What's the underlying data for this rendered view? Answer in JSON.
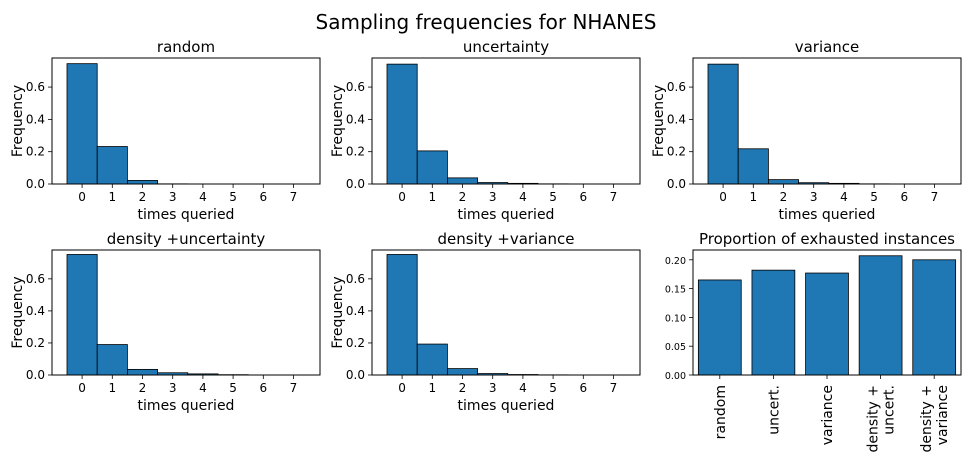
{
  "figure": {
    "title": "Sampling frequencies for NHANES",
    "bar_color": "#1f77b4"
  },
  "chart_data": [
    {
      "type": "bar",
      "title": "random",
      "xlabel": "times queried",
      "ylabel": "Frequency",
      "categories": [
        "0",
        "1",
        "2",
        "3",
        "4",
        "5",
        "6",
        "7"
      ],
      "values": [
        0.745,
        0.232,
        0.022,
        0.001,
        0,
        0,
        0,
        0
      ],
      "ylim": [
        0,
        0.78
      ],
      "yticks": [
        "0.0",
        "0.2",
        "0.4",
        "0.6"
      ]
    },
    {
      "type": "bar",
      "title": "uncertainty",
      "xlabel": "times queried",
      "ylabel": "Frequency",
      "categories": [
        "0",
        "1",
        "2",
        "3",
        "4",
        "5",
        "6",
        "7"
      ],
      "values": [
        0.742,
        0.205,
        0.038,
        0.009,
        0.004,
        0.001,
        0,
        0
      ],
      "ylim": [
        0,
        0.78
      ],
      "yticks": [
        "0.0",
        "0.2",
        "0.4",
        "0.6"
      ]
    },
    {
      "type": "bar",
      "title": "variance",
      "xlabel": "times queried",
      "ylabel": "Frequency",
      "categories": [
        "0",
        "1",
        "2",
        "3",
        "4",
        "5",
        "6",
        "7"
      ],
      "values": [
        0.742,
        0.218,
        0.027,
        0.008,
        0.004,
        0.001,
        0,
        0
      ],
      "ylim": [
        0,
        0.78
      ],
      "yticks": [
        "0.0",
        "0.2",
        "0.4",
        "0.6"
      ]
    },
    {
      "type": "bar",
      "title": "density +uncertainty",
      "xlabel": "times queried",
      "ylabel": "Frequency",
      "categories": [
        "0",
        "1",
        "2",
        "3",
        "4",
        "5",
        "6",
        "7"
      ],
      "values": [
        0.752,
        0.19,
        0.035,
        0.014,
        0.007,
        0.002,
        0,
        0
      ],
      "ylim": [
        0,
        0.78
      ],
      "yticks": [
        "0.0",
        "0.2",
        "0.4",
        "0.6"
      ]
    },
    {
      "type": "bar",
      "title": "density +variance",
      "xlabel": "times queried",
      "ylabel": "Frequency",
      "categories": [
        "0",
        "1",
        "2",
        "3",
        "4",
        "5",
        "6",
        "7"
      ],
      "values": [
        0.752,
        0.193,
        0.04,
        0.009,
        0.003,
        0.001,
        0,
        0
      ],
      "ylim": [
        0,
        0.78
      ],
      "yticks": [
        "0.0",
        "0.2",
        "0.4",
        "0.6"
      ]
    },
    {
      "type": "bar",
      "title": "Proportion of exhausted instances",
      "xlabel": "",
      "ylabel": "",
      "categories": [
        "random",
        "uncert.",
        "variance",
        "density +\nuncert.",
        "density +\nvariance"
      ],
      "values": [
        0.165,
        0.182,
        0.177,
        0.207,
        0.2
      ],
      "ylim": [
        0,
        0.217
      ],
      "yticks": [
        "0.00",
        "0.05",
        "0.10",
        "0.15",
        "0.20"
      ]
    }
  ]
}
